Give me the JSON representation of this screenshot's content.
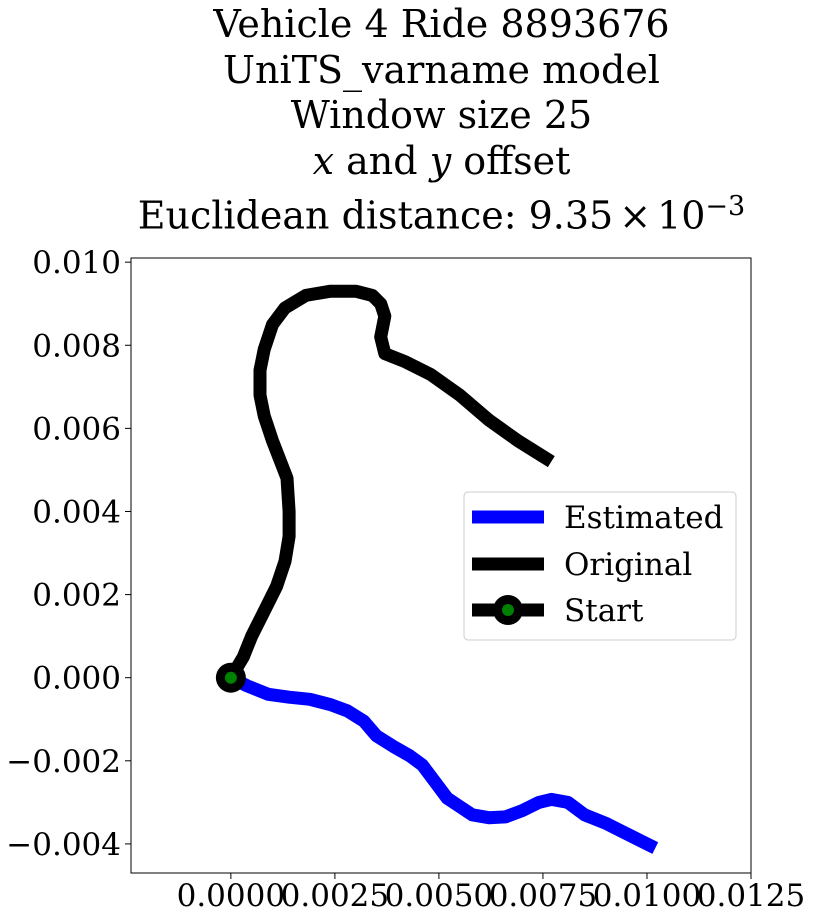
{
  "title_lines": [
    "Vehicle 4 Ride 8893676",
    "UniTS_varname model",
    "Window size 25"
  ],
  "title_offset_parts": {
    "x": "x",
    "and": "and",
    "y": "y",
    "suffix": "offset"
  },
  "title_distance": {
    "prefix": "Euclidean distance: ",
    "mantissa": "9.35",
    "times": "×",
    "base": "10",
    "exponent": "−3"
  },
  "colors": {
    "estimated": "#0000ff",
    "original": "#000000",
    "start_fill": "#008000",
    "start_edge": "#000000"
  },
  "chart_data": {
    "type": "line",
    "xlim": [
      -0.0024,
      0.0125
    ],
    "ylim": [
      -0.0047,
      0.0101
    ],
    "x_ticks": [
      0.0,
      0.0025,
      0.005,
      0.0075,
      0.01,
      0.0125
    ],
    "x_tick_labels": [
      "0.0000",
      "0.0025",
      "0.0050",
      "0.0075",
      "0.0100",
      "0.0125"
    ],
    "y_ticks": [
      -0.004,
      -0.002,
      0.0,
      0.002,
      0.004,
      0.006,
      0.008,
      0.01
    ],
    "y_tick_labels": [
      "−0.004",
      "−0.002",
      "0.000",
      "0.002",
      "0.004",
      "0.006",
      "0.008",
      "0.010"
    ],
    "grid": false,
    "legend_position": "center-right",
    "series": [
      {
        "name": "Estimated",
        "color": "#0000ff",
        "points": [
          [
            0.0,
            0.0
          ],
          [
            0.0004,
            -0.0002
          ],
          [
            0.0009,
            -0.0004
          ],
          [
            0.0014,
            -0.00047
          ],
          [
            0.0019,
            -0.00052
          ],
          [
            0.0024,
            -0.00065
          ],
          [
            0.0028,
            -0.0008
          ],
          [
            0.0032,
            -0.00105
          ],
          [
            0.0035,
            -0.0014
          ],
          [
            0.0039,
            -0.00165
          ],
          [
            0.0043,
            -0.00188
          ],
          [
            0.0046,
            -0.0021
          ],
          [
            0.0049,
            -0.0025
          ],
          [
            0.0052,
            -0.0029
          ],
          [
            0.0055,
            -0.0031
          ],
          [
            0.0058,
            -0.0033
          ],
          [
            0.0062,
            -0.00337
          ],
          [
            0.0066,
            -0.00335
          ],
          [
            0.007,
            -0.0032
          ],
          [
            0.0074,
            -0.003
          ],
          [
            0.0077,
            -0.00293
          ],
          [
            0.0081,
            -0.003
          ],
          [
            0.0085,
            -0.0033
          ],
          [
            0.009,
            -0.0035
          ],
          [
            0.0094,
            -0.0037
          ],
          [
            0.0098,
            -0.0039
          ],
          [
            0.0102,
            -0.0041
          ]
        ]
      },
      {
        "name": "Original",
        "color": "#000000",
        "points": [
          [
            0.0,
            0.0
          ],
          [
            0.0003,
            0.0005
          ],
          [
            0.0005,
            0.001
          ],
          [
            0.0008,
            0.0016
          ],
          [
            0.0011,
            0.0022
          ],
          [
            0.0013,
            0.0028
          ],
          [
            0.0014,
            0.0034
          ],
          [
            0.0014,
            0.004
          ],
          [
            0.00135,
            0.0048
          ],
          [
            0.001,
            0.0057
          ],
          [
            0.0008,
            0.0063
          ],
          [
            0.0007,
            0.0068
          ],
          [
            0.0007,
            0.0074
          ],
          [
            0.0008,
            0.0079
          ],
          [
            0.001,
            0.0085
          ],
          [
            0.0013,
            0.0089
          ],
          [
            0.0018,
            0.0092
          ],
          [
            0.0024,
            0.0093
          ],
          [
            0.003,
            0.0093
          ],
          [
            0.0034,
            0.0092
          ],
          [
            0.0036,
            0.009
          ],
          [
            0.0037,
            0.0087
          ],
          [
            0.0036,
            0.0082
          ],
          [
            0.0037,
            0.0078
          ],
          [
            0.0042,
            0.0076
          ],
          [
            0.0048,
            0.0073
          ],
          [
            0.0055,
            0.0068
          ],
          [
            0.0062,
            0.0062
          ],
          [
            0.0069,
            0.0057
          ],
          [
            0.0077,
            0.0052
          ]
        ]
      }
    ],
    "start_point": {
      "name": "Start",
      "x": 0.0,
      "y": 0.0
    }
  },
  "legend": {
    "items": [
      "Estimated",
      "Original",
      "Start"
    ]
  }
}
